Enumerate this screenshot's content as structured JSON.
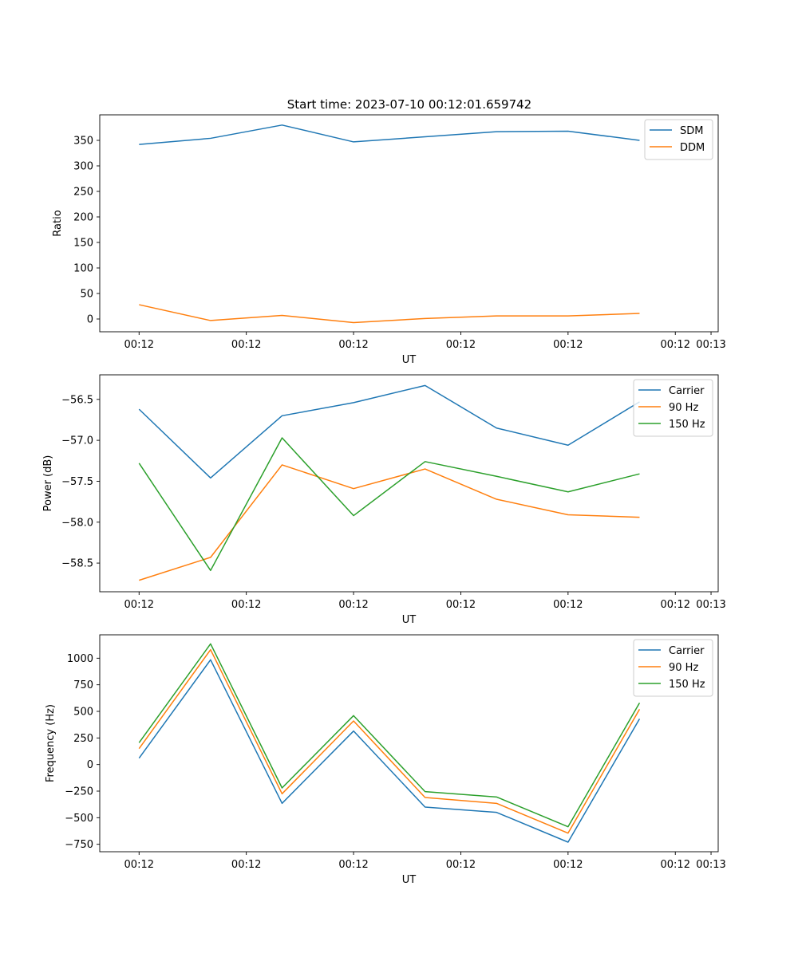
{
  "figure_title": "Start time: 2023-07-10 00:12:01.659742",
  "chart_data": [
    {
      "type": "line",
      "title": "Start time: 2023-07-10 00:12:01.659742",
      "xlabel": "UT",
      "ylabel": "Ratio",
      "x_tick_labels": [
        "00:12",
        "00:12",
        "00:12",
        "00:12",
        "00:12",
        "00:12",
        "00:13"
      ],
      "x": [
        1,
        2,
        3,
        4,
        5,
        6,
        7,
        8
      ],
      "xlim": [
        0.45,
        9.1
      ],
      "ylim": [
        -25,
        400
      ],
      "yticks": [
        0,
        50,
        100,
        150,
        200,
        250,
        300,
        350
      ],
      "legend_position": "top-right",
      "series": [
        {
          "name": "SDM",
          "color": "#1f77b4",
          "values": [
            342,
            354,
            380,
            347,
            357,
            367,
            368,
            350
          ]
        },
        {
          "name": "DDM",
          "color": "#ff7f0e",
          "values": [
            28,
            -3,
            7,
            -7,
            1,
            6,
            6,
            11
          ]
        }
      ]
    },
    {
      "type": "line",
      "title": "",
      "xlabel": "UT",
      "ylabel": "Power (dB)",
      "x_tick_labels": [
        "00:12",
        "00:12",
        "00:12",
        "00:12",
        "00:12",
        "00:12",
        "00:13"
      ],
      "x": [
        1,
        2,
        3,
        4,
        5,
        6,
        7,
        8
      ],
      "xlim": [
        0.45,
        9.1
      ],
      "ylim": [
        -58.85,
        -56.2
      ],
      "yticks": [
        -58.5,
        -58.0,
        -57.5,
        -57.0,
        -56.5
      ],
      "y_tick_labels": [
        "−58.5",
        "−58.0",
        "−57.5",
        "−57.0",
        "−56.5"
      ],
      "legend_position": "top-right",
      "series": [
        {
          "name": "Carrier",
          "color": "#1f77b4",
          "values": [
            -56.62,
            -57.46,
            -56.7,
            -56.54,
            -56.33,
            -56.85,
            -57.06,
            -56.53
          ]
        },
        {
          "name": "90 Hz",
          "color": "#ff7f0e",
          "values": [
            -58.71,
            -58.43,
            -57.3,
            -57.59,
            -57.35,
            -57.72,
            -57.91,
            -57.94
          ]
        },
        {
          "name": "150 Hz",
          "color": "#2ca02c",
          "values": [
            -57.28,
            -58.59,
            -56.97,
            -57.92,
            -57.26,
            -57.44,
            -57.63,
            -57.41
          ]
        }
      ]
    },
    {
      "type": "line",
      "title": "",
      "xlabel": "UT",
      "ylabel": "Frequency (Hz)",
      "x_tick_labels": [
        "00:12",
        "00:12",
        "00:12",
        "00:12",
        "00:12",
        "00:12",
        "00:13"
      ],
      "x": [
        1,
        2,
        3,
        4,
        5,
        6,
        7,
        8
      ],
      "xlim": [
        0.45,
        9.1
      ],
      "ylim": [
        -820,
        1220
      ],
      "yticks": [
        -750,
        -500,
        -250,
        0,
        250,
        500,
        750,
        1000
      ],
      "y_tick_labels": [
        "−750",
        "−500",
        "−250",
        "0",
        "250",
        "500",
        "750",
        "1000"
      ],
      "legend_position": "top-right",
      "series": [
        {
          "name": "Carrier",
          "color": "#1f77b4",
          "values": [
            60,
            985,
            -365,
            315,
            -400,
            -450,
            -730,
            430
          ]
        },
        {
          "name": "90 Hz",
          "color": "#ff7f0e",
          "values": [
            150,
            1080,
            -275,
            410,
            -310,
            -365,
            -645,
            520
          ]
        },
        {
          "name": "150 Hz",
          "color": "#2ca02c",
          "values": [
            205,
            1135,
            -220,
            460,
            -255,
            -305,
            -585,
            580
          ]
        }
      ]
    }
  ]
}
